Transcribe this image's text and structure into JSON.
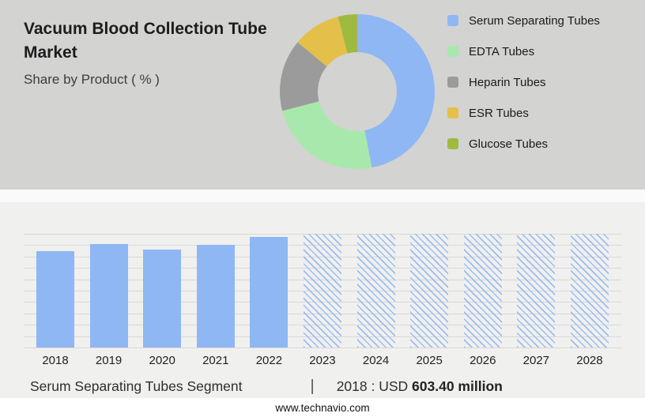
{
  "header": {
    "title": "Vacuum Blood Collection Tube Market",
    "subtitle": "Share by Product ( % )"
  },
  "caption": {
    "segment_label": "Serum Separating Tubes Segment",
    "separator": "|",
    "year_prefix": "2018 : USD",
    "value": "603.40 million"
  },
  "footer": {
    "website": "www.technavio.com"
  },
  "chart_data": [
    {
      "type": "pie",
      "title": "Share by Product ( % )",
      "donut": true,
      "legend_position": "right",
      "segments": [
        {
          "label": "Serum Separating Tubes",
          "value": 47,
          "color": "#8fb7f3"
        },
        {
          "label": "EDTA Tubes",
          "value": 24,
          "color": "#a9e8ad"
        },
        {
          "label": "Heparin Tubes",
          "value": 15,
          "color": "#9b9b9b"
        },
        {
          "label": "ESR Tubes",
          "value": 10,
          "color": "#e4c04a"
        },
        {
          "label": "Glucose Tubes",
          "value": 4,
          "color": "#9fba40"
        }
      ]
    },
    {
      "type": "bar",
      "title": "Serum Separating Tubes Segment market size by year",
      "categories": [
        "2018",
        "2019",
        "2020",
        "2021",
        "2022",
        "2023",
        "2024",
        "2025",
        "2026",
        "2027",
        "2028"
      ],
      "values": [
        85,
        91,
        86,
        90,
        97,
        100,
        100,
        100,
        100,
        100,
        100
      ],
      "styles": [
        "solid",
        "solid",
        "solid",
        "solid",
        "solid",
        "hatched",
        "hatched",
        "hatched",
        "hatched",
        "hatched",
        "hatched"
      ],
      "units": "relative bar height, % of plot max (actual values not labeled; hatched bars are forecast years)",
      "annotation": "2018 : USD 603.40 million",
      "xlabel": "",
      "ylabel": "",
      "ylim": [
        0,
        100
      ],
      "grid": true,
      "bar_color": "#8fb7f3"
    }
  ]
}
